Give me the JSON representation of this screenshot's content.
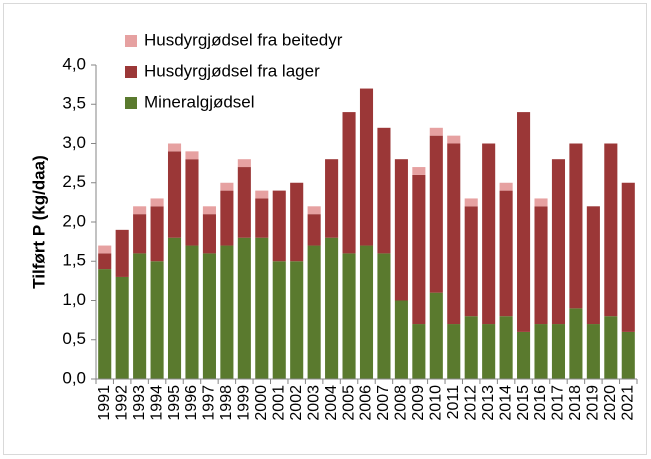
{
  "chart_data": {
    "type": "stacked_bar",
    "ylabel": "Tilført P (kg/daa)",
    "categories": [
      "1991",
      "1992",
      "1993",
      "1994",
      "1995",
      "1996",
      "1997",
      "1998",
      "1999",
      "2000",
      "2001",
      "2002",
      "2003",
      "2004",
      "2005",
      "2006",
      "2007",
      "2008",
      "2009",
      "2010",
      "2011",
      "2012",
      "2013",
      "2014",
      "2015",
      "2016",
      "2017",
      "2018",
      "2019",
      "2020",
      "2021"
    ],
    "series": [
      {
        "name": "Mineralgjødsel",
        "color": "#5a7a2e",
        "values": [
          1.4,
          1.3,
          1.6,
          1.5,
          1.8,
          1.7,
          1.6,
          1.7,
          1.8,
          1.8,
          1.5,
          1.5,
          1.7,
          1.8,
          1.6,
          1.7,
          1.6,
          1.0,
          0.7,
          1.1,
          0.7,
          0.8,
          0.7,
          0.8,
          0.6,
          0.7,
          0.7,
          0.9,
          0.7,
          0.8,
          0.6
        ]
      },
      {
        "name": "Husdyrgjødsel fra lager",
        "color": "#9b3737",
        "values": [
          0.2,
          0.6,
          0.5,
          0.7,
          1.1,
          1.1,
          0.5,
          0.7,
          0.9,
          0.5,
          0.9,
          1.0,
          0.4,
          1.0,
          1.8,
          2.0,
          1.6,
          1.8,
          1.9,
          2.0,
          2.3,
          1.4,
          2.3,
          1.6,
          2.8,
          1.5,
          2.1,
          2.1,
          1.5,
          2.2,
          1.9
        ]
      },
      {
        "name": "Husdyrgjødsel fra beitedyr",
        "color": "#e6a1a1",
        "values": [
          0.1,
          0,
          0.1,
          0.1,
          0.1,
          0.1,
          0.1,
          0.1,
          0.1,
          0.1,
          0,
          0,
          0.1,
          0,
          0,
          0,
          0,
          0,
          0.1,
          0.1,
          0.1,
          0.1,
          0,
          0.1,
          0,
          0.1,
          0,
          0,
          0,
          0,
          0
        ]
      }
    ],
    "ylim": [
      0,
      4
    ],
    "yticks": [
      {
        "value": 0,
        "label": "0,0"
      },
      {
        "value": 0.5,
        "label": "0,5"
      },
      {
        "value": 1,
        "label": "1,0"
      },
      {
        "value": 1.5,
        "label": "1,5"
      },
      {
        "value": 2,
        "label": "2,0"
      },
      {
        "value": 2.5,
        "label": "2,5"
      },
      {
        "value": 3,
        "label": "3,0"
      },
      {
        "value": 3.5,
        "label": "3,5"
      },
      {
        "value": 4,
        "label": "4,0"
      }
    ],
    "grid": false,
    "legend": "upper left"
  }
}
